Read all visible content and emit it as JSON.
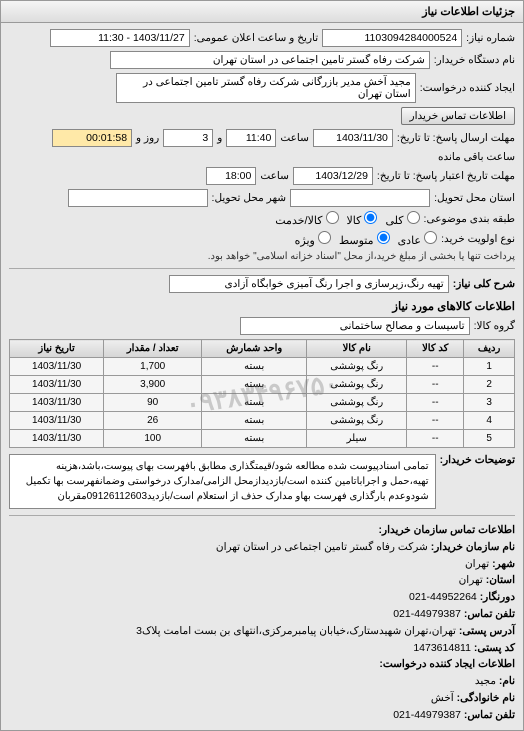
{
  "header": {
    "title": "جزئیات اطلاعات نیاز"
  },
  "top": {
    "reqNoLabel": "شماره نیاز:",
    "reqNo": "1103094284000524",
    "announceLabel": "تاریخ و ساعت اعلان عمومی:",
    "announceVal": "1403/11/27 - 11:30",
    "buyerNameLabel": "نام دستگاه خریدار:",
    "buyerName": "شرکت رفاه گستر تامین اجتماعی در استان تهران",
    "creatorLabel": "ایجاد کننده درخواست:",
    "creatorName": "مجید آخش مدیر بازرگانی شرکت رفاه گستر تامین اجتماعی در استان تهران",
    "buyerContactBtn": "اطلاعات تماس خریدار",
    "deadlineSendLabel": "مهلت ارسال پاسخ: تا تاریخ:",
    "deadlineSendDate": "1403/11/30",
    "hourLabel1": "ساعت",
    "deadlineSendTime": "11:40",
    "andLabel": "و",
    "remainDays": "3",
    "dayLabel": "روز و",
    "remainTime": "00:01:58",
    "remainLabel": "ساعت باقی مانده",
    "validityLabel": "مهلت تاریخ اعتبار پاسخ: تا تاریخ:",
    "validityDate": "1403/12/29",
    "hourLabel2": "ساعت",
    "validityTime": "18:00",
    "provinceDeliverLabel": "استان محل تحویل:",
    "cityDeliverLabel": "شهر محل تحویل:",
    "groupLabel": "طبقه بندی موضوعی:",
    "groupRadios": {
      "all": "کلی",
      "goods": "کالا",
      "services": "کالا/خدمت"
    },
    "priorityLabel": "نوع اولویت خرید:",
    "priorityRadios": {
      "normal": "عادی",
      "medium": "متوسط",
      "special": "ویژه"
    },
    "priorityNote": "پرداخت تنها یا بخشی از مبلغ خرید،از محل \"اسناد خزانه اسلامی\" خواهد بود."
  },
  "need": {
    "needLabel": "شرح کلی نیاز:",
    "needText": "تهیه رنگ،زیرسازی و اجرا رنگ آمیزی خوابگاه آزادی"
  },
  "items": {
    "sectionTitle": "اطلاعات کالاهای مورد نیاز",
    "groupLabel": "گروه کالا:",
    "groupVal": "تاسیسات و مصالح ساختمانی",
    "columns": [
      "ردیف",
      "کد کالا",
      "نام کالا",
      "واحد شمارش",
      "تعداد / مقدار",
      "تاریخ نیاز"
    ],
    "rows": [
      [
        "1",
        "--",
        "رنگ پوششی",
        "بسته",
        "1,700",
        "1403/11/30"
      ],
      [
        "2",
        "--",
        "رنگ پوششی",
        "بسته",
        "3,900",
        "1403/11/30"
      ],
      [
        "3",
        "--",
        "رنگ پوششی",
        "بسته",
        "90",
        "1403/11/30"
      ],
      [
        "4",
        "--",
        "رنگ پوششی",
        "بسته",
        "26",
        "1403/11/30"
      ],
      [
        "5",
        "--",
        "سیلر",
        "بسته",
        "100",
        "1403/11/30"
      ]
    ],
    "watermark": "۰۹۳۸۳۴۹۶۷۵۰"
  },
  "desc": {
    "label": "توضیحات خریدار:",
    "text": "تمامی اسنادپیوست شده مطالعه شود/قیمتگذاری مطابق بافهرست بهای پیوست،باشد،هزینه تهیه،حمل و اجراباتامین کننده است/بازدیدازمحل الزامی/مدارک درخواستی وضمانفهرست بها تکمیل شودوعدم بارگذاری فهرست بهاو مدارک حذف از استعلام است/بازدید09126112603مقربان"
  },
  "contact": {
    "sectionTitle": "اطلاعات تماس سازمان خریدار:",
    "orgLabel": "نام سازمان خریدار:",
    "orgVal": "شرکت رفاه گستر تامین اجتماعی در استان تهران",
    "cityLabel": "شهر:",
    "cityVal": "تهران",
    "provinceLabel": "استان:",
    "provinceVal": "تهران",
    "faxLabel": "دورنگار:",
    "faxVal": "44952264-021",
    "phoneLabel": "تلفن تماس:",
    "phoneVal": "44979387-021",
    "addrLabel": "آدرس پستی:",
    "addrVal": "تهران،تهران شهیدستارک،خیابان پیامبرمرکزی،انتهای بن بست امامت پلاک3",
    "postLabel": "کد پستی:",
    "postVal": "1473614811",
    "creatorSection": "اطلاعات ایجاد کننده درخواست:",
    "nameLabel": "نام:",
    "nameVal": "مجید",
    "famLabel": "نام خانوادگی:",
    "famVal": "آخش",
    "phone2Label": "تلفن تماس:",
    "phone2Val": "44979387-021"
  }
}
